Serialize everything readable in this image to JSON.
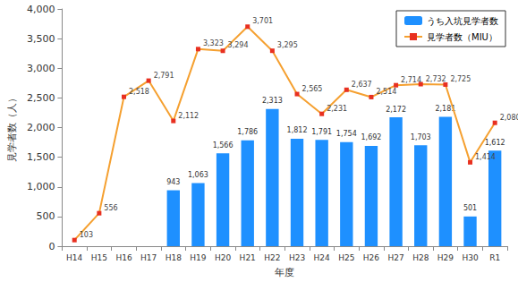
{
  "chart_data": {
    "type": "bar",
    "x_label": "年度",
    "y_label": "見学者数（人）",
    "categories": [
      "H14",
      "H15",
      "H16",
      "H17",
      "H18",
      "H19",
      "H20",
      "H21",
      "H22",
      "H23",
      "H24",
      "H25",
      "H26",
      "H27",
      "H28",
      "H29",
      "H30",
      "R1"
    ],
    "series": [
      {
        "name": "うち入坑見学者数",
        "type": "bar",
        "color": "#1e90ff",
        "values": [
          null,
          null,
          null,
          null,
          943,
          1063,
          1566,
          1786,
          2313,
          1812,
          1791,
          1754,
          1692,
          2172,
          1703,
          2181,
          501,
          1612
        ],
        "value_labels": [
          null,
          null,
          null,
          null,
          "943",
          "1,063",
          "1,566",
          "1,786",
          "2,313",
          "1,812",
          "1,791",
          "1,754",
          "1,692",
          "2,172",
          "1,703",
          "2,181",
          "501",
          "1,612"
        ]
      },
      {
        "name": "見学者数（MIU）",
        "type": "line",
        "color": "#f5a030",
        "marker": "square",
        "values": [
          103,
          556,
          2518,
          2791,
          2112,
          3323,
          3294,
          3701,
          3295,
          2565,
          2231,
          2637,
          2514,
          2714,
          2732,
          2725,
          1414,
          2080
        ],
        "value_labels": [
          "103",
          "556",
          "2,518",
          "2,791",
          "2,112",
          "3,323",
          "3,294",
          "3,701",
          "3,295",
          "2,565",
          "2,231",
          "2,637",
          "2,514",
          "2,714",
          "2,732",
          "2,725",
          "1,414",
          "2,080"
        ]
      }
    ],
    "ylim": [
      0,
      4000
    ],
    "yticks": [
      0,
      500,
      {
        "value": 1000,
        "label": "1,000"
      },
      {
        "value": 1500,
        "label": "1,500"
      },
      {
        "value": 2000,
        "label": "2,000"
      },
      {
        "value": 2500,
        "label": "2,500"
      },
      {
        "value": 3000,
        "label": "3,000"
      },
      {
        "value": 3500,
        "label": "3,500"
      },
      {
        "value": 4000,
        "label": "4,000"
      }
    ],
    "grid": false,
    "legend": "upper right",
    "data_labels": true
  }
}
